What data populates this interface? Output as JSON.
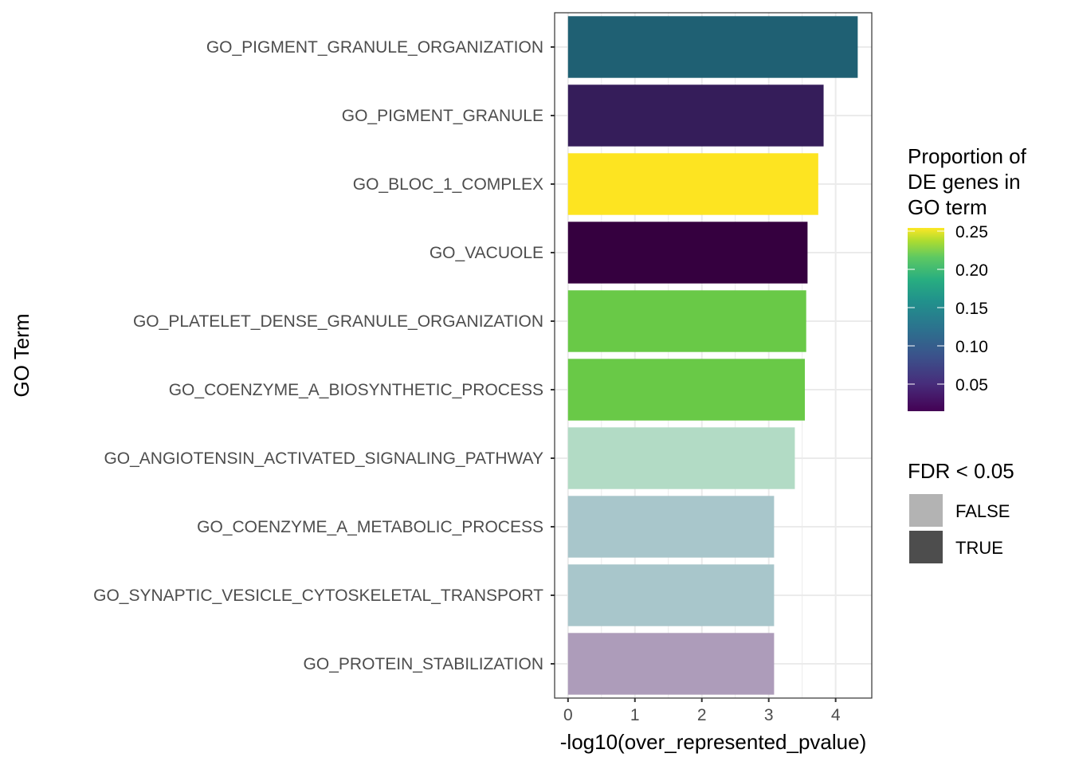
{
  "chart_data": {
    "type": "bar",
    "orientation": "horizontal",
    "xlabel": "-log10(over_represented_pvalue)",
    "ylabel": "GO Term",
    "xlim": [
      -0.2,
      4.54
    ],
    "xticks": [
      0,
      1,
      2,
      3,
      4
    ],
    "grid": true,
    "categories": [
      "GO_PIGMENT_GRANULE_ORGANIZATION",
      "GO_PIGMENT_GRANULE",
      "GO_BLOC_1_COMPLEX",
      "GO_VACUOLE",
      "GO_PLATELET_DENSE_GRANULE_ORGANIZATION",
      "GO_COENZYME_A_BIOSYNTHETIC_PROCESS",
      "GO_ANGIOTENSIN_ACTIVATED_SIGNALING_PATHWAY",
      "GO_COENZYME_A_METABOLIC_PROCESS",
      "GO_SYNAPTIC_VESICLE_CYTOSKELETAL_TRANSPORT",
      "GO_PROTEIN_STABILIZATION"
    ],
    "values": [
      4.33,
      3.82,
      3.74,
      3.58,
      3.56,
      3.54,
      3.39,
      3.08,
      3.08,
      3.08
    ],
    "proportion": [
      0.12,
      0.03,
      0.25,
      0.01,
      0.21,
      0.21,
      0.16,
      0.11,
      0.11,
      0.04
    ],
    "fdr_lt_005": [
      true,
      true,
      true,
      true,
      true,
      true,
      false,
      false,
      false,
      false
    ],
    "colors": [
      "#1f6073",
      "#351d5a",
      "#fde421",
      "#35003f",
      "#69c947",
      "#69c947",
      "#b2dbc5",
      "#a8c6cb",
      "#a8c6cb",
      "#ad9cba"
    ],
    "legend": {
      "placement": "right",
      "color_title": [
        "Proportion of",
        "DE genes in",
        "GO term"
      ],
      "color_ticks": [
        "0.25",
        "0.20",
        "0.15",
        "0.10",
        "0.05"
      ],
      "color_tick_values": [
        0.25,
        0.2,
        0.15,
        0.1,
        0.05
      ],
      "color_range": [
        0.0125,
        0.25
      ],
      "alpha_title": "FDR < 0.05",
      "alpha_entries": [
        {
          "label": "FALSE",
          "color": "#b3b3b3"
        },
        {
          "label": "TRUE",
          "color": "#4d4d4d"
        }
      ]
    }
  }
}
